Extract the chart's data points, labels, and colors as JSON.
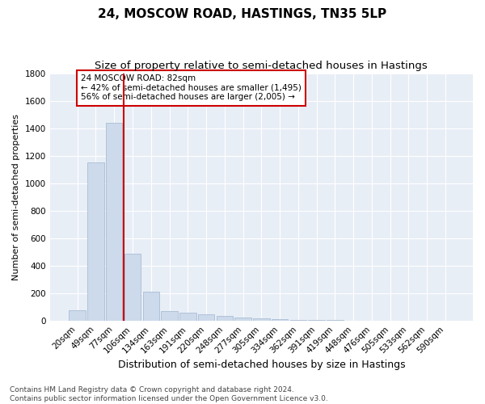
{
  "title": "24, MOSCOW ROAD, HASTINGS, TN35 5LP",
  "subtitle": "Size of property relative to semi-detached houses in Hastings",
  "xlabel": "Distribution of semi-detached houses by size in Hastings",
  "ylabel": "Number of semi-detached properties",
  "categories": [
    "20sqm",
    "49sqm",
    "77sqm",
    "106sqm",
    "134sqm",
    "163sqm",
    "191sqm",
    "220sqm",
    "248sqm",
    "277sqm",
    "305sqm",
    "334sqm",
    "362sqm",
    "391sqm",
    "419sqm",
    "448sqm",
    "476sqm",
    "505sqm",
    "533sqm",
    "562sqm",
    "590sqm"
  ],
  "values": [
    75,
    1150,
    1440,
    490,
    210,
    70,
    60,
    50,
    38,
    27,
    20,
    15,
    10,
    8,
    5,
    4,
    3,
    2,
    1,
    1,
    0
  ],
  "bar_color": "#ccdaeb",
  "bar_edge_color": "#aabdd4",
  "vline_x": 2.5,
  "vline_color": "#cc0000",
  "annotation_text": "24 MOSCOW ROAD: 82sqm\n← 42% of semi-detached houses are smaller (1,495)\n56% of semi-detached houses are larger (2,005) →",
  "annotation_box_color": "#ffffff",
  "annotation_box_edge": "#cc0000",
  "ylim": [
    0,
    1800
  ],
  "yticks": [
    0,
    200,
    400,
    600,
    800,
    1000,
    1200,
    1400,
    1600,
    1800
  ],
  "background_color": "#ffffff",
  "plot_bg_color": "#e8eef6",
  "grid_color": "#ffffff",
  "footer": "Contains HM Land Registry data © Crown copyright and database right 2024.\nContains public sector information licensed under the Open Government Licence v3.0.",
  "title_fontsize": 11,
  "subtitle_fontsize": 9.5,
  "xlabel_fontsize": 9,
  "ylabel_fontsize": 8,
  "tick_fontsize": 7.5,
  "footer_fontsize": 6.5
}
